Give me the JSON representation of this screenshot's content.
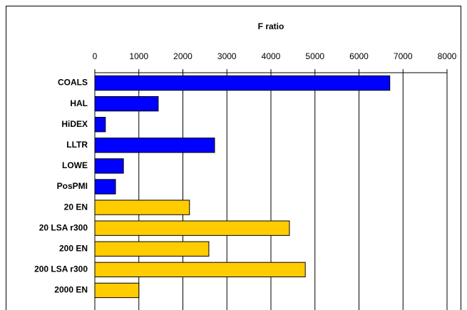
{
  "chart_data": {
    "type": "bar",
    "orientation": "horizontal",
    "title": "F ratio",
    "categories": [
      "COALS",
      "HAL",
      "HiDEX",
      "LLTR",
      "LOWE",
      "PosPMI",
      "20 EN",
      "20 LSA r300",
      "200 EN",
      "200 LSA r300",
      "2000 EN"
    ],
    "values": [
      6700,
      1440,
      240,
      2720,
      650,
      470,
      2150,
      4420,
      2590,
      4780,
      1000
    ],
    "colors": [
      "#0000ff",
      "#0000ff",
      "#0000ff",
      "#0000ff",
      "#0000ff",
      "#0000ff",
      "#ffcc00",
      "#ffcc00",
      "#ffcc00",
      "#ffcc00",
      "#ffcc00"
    ],
    "xlim": [
      0,
      8000
    ],
    "xticks": [
      0,
      1000,
      2000,
      3000,
      4000,
      5000,
      6000,
      7000,
      8000
    ],
    "grid": true,
    "axis_position": "top"
  }
}
